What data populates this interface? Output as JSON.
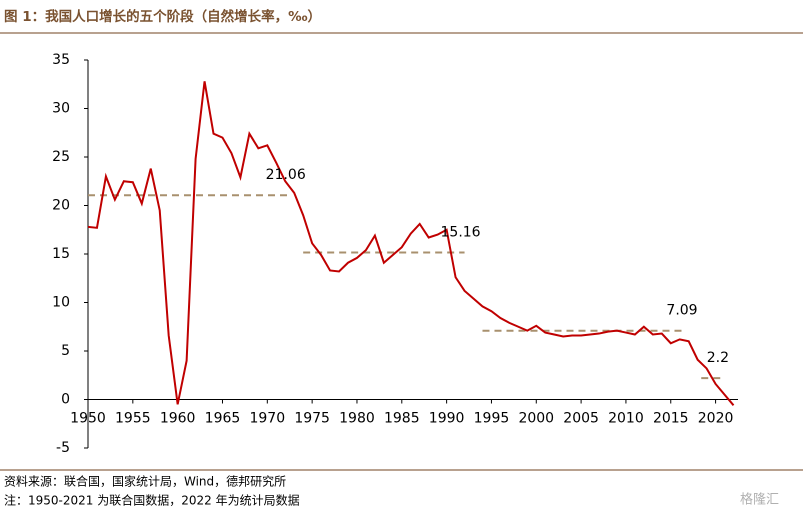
{
  "chart_data": {
    "type": "line",
    "title": "图 1：我国人口增长的五个阶段（自然增长率，‰）",
    "source": "资料来源：联合国，国家统计局，Wind，德邦研究所",
    "note": "注：1950-2021 为联合国数据，2022 年为统计局数据",
    "watermark": "格隆汇",
    "x": [
      1950,
      1951,
      1952,
      1953,
      1954,
      1955,
      1956,
      1957,
      1958,
      1959,
      1960,
      1961,
      1962,
      1963,
      1964,
      1965,
      1966,
      1967,
      1968,
      1969,
      1970,
      1971,
      1972,
      1973,
      1974,
      1975,
      1976,
      1977,
      1978,
      1979,
      1980,
      1981,
      1982,
      1983,
      1984,
      1985,
      1986,
      1987,
      1988,
      1989,
      1990,
      1991,
      1992,
      1993,
      1994,
      1995,
      1996,
      1997,
      1998,
      1999,
      2000,
      2001,
      2002,
      2003,
      2004,
      2005,
      2006,
      2007,
      2008,
      2009,
      2010,
      2011,
      2012,
      2013,
      2014,
      2015,
      2016,
      2017,
      2018,
      2019,
      2020,
      2021,
      2022
    ],
    "series": [
      {
        "color": "#c00000",
        "values": [
          17.8,
          17.7,
          23.0,
          20.6,
          22.5,
          22.4,
          20.2,
          23.8,
          19.5,
          6.6,
          -0.5,
          4.0,
          24.8,
          32.8,
          27.4,
          27.0,
          25.4,
          22.9,
          27.4,
          25.9,
          26.2,
          24.4,
          22.5,
          21.3,
          19.0,
          16.1,
          14.9,
          13.3,
          13.2,
          14.1,
          14.6,
          15.4,
          16.9,
          14.1,
          14.9,
          15.7,
          17.1,
          18.1,
          16.7,
          17.0,
          17.5,
          12.6,
          11.2,
          10.4,
          9.6,
          9.1,
          8.4,
          7.9,
          7.5,
          7.1,
          7.6,
          6.9,
          6.7,
          6.5,
          6.6,
          6.6,
          6.7,
          6.8,
          7.0,
          7.1,
          6.9,
          6.7,
          7.5,
          6.7,
          6.8,
          5.8,
          6.2,
          6.0,
          4.1,
          3.2,
          1.6,
          0.5,
          -0.6
        ]
      }
    ],
    "averages": {
      "color": "#a8906e",
      "values": [
        21.06,
        15.16,
        7.09,
        2.2
      ],
      "start": [
        1950,
        1974,
        1994,
        2018.4
      ],
      "end": [
        1972.5,
        1992,
        2016.7,
        2020.7
      ]
    },
    "xlim": [
      1950,
      2022.5
    ],
    "xticks": [
      1950,
      1955,
      1960,
      1965,
      1970,
      1975,
      1980,
      1985,
      1990,
      1995,
      2000,
      2005,
      2010,
      2015,
      2020
    ],
    "ylim": [
      -5,
      35
    ],
    "yticks": [
      -5,
      0,
      5,
      10,
      15,
      20,
      25,
      30,
      35
    ]
  }
}
